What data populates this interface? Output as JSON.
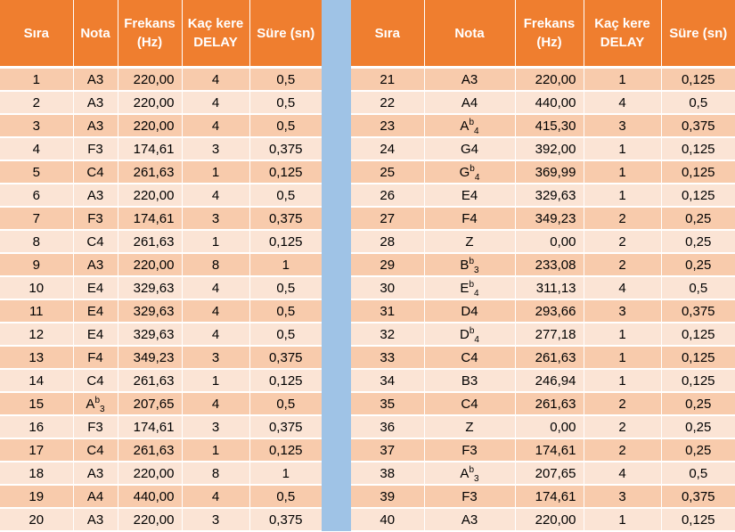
{
  "headers": {
    "sira": "Sıra",
    "nota": "Nota",
    "frekans_1": "Frekans",
    "frekans_2": "(Hz)",
    "kac_kere_1": "Kaç kere",
    "kac_kere_2": "DELAY",
    "sure": "Süre (sn)"
  },
  "left_rows": [
    {
      "sira": "1",
      "nota": "A3",
      "frekans": "220,00",
      "kac_kere": "4",
      "sure": "0,5"
    },
    {
      "sira": "2",
      "nota": "A3",
      "frekans": "220,00",
      "kac_kere": "4",
      "sure": "0,5"
    },
    {
      "sira": "3",
      "nota": "A3",
      "frekans": "220,00",
      "kac_kere": "4",
      "sure": "0,5"
    },
    {
      "sira": "4",
      "nota": "F3",
      "frekans": "174,61",
      "kac_kere": "3",
      "sure": "0,375"
    },
    {
      "sira": "5",
      "nota": "C4",
      "frekans": "261,63",
      "kac_kere": "1",
      "sure": "0,125"
    },
    {
      "sira": "6",
      "nota": "A3",
      "frekans": "220,00",
      "kac_kere": "4",
      "sure": "0,5"
    },
    {
      "sira": "7",
      "nota": "F3",
      "frekans": "174,61",
      "kac_kere": "3",
      "sure": "0,375"
    },
    {
      "sira": "8",
      "nota": "C4",
      "frekans": "261,63",
      "kac_kere": "1",
      "sure": "0,125"
    },
    {
      "sira": "9",
      "nota": "A3",
      "frekans": "220,00",
      "kac_kere": "8",
      "sure": "1"
    },
    {
      "sira": "10",
      "nota": "E4",
      "frekans": "329,63",
      "kac_kere": "4",
      "sure": "0,5"
    },
    {
      "sira": "11",
      "nota": "E4",
      "frekans": "329,63",
      "kac_kere": "4",
      "sure": "0,5"
    },
    {
      "sira": "12",
      "nota": "E4",
      "frekans": "329,63",
      "kac_kere": "4",
      "sure": "0,5"
    },
    {
      "sira": "13",
      "nota": "F4",
      "frekans": "349,23",
      "kac_kere": "3",
      "sure": "0,375"
    },
    {
      "sira": "14",
      "nota": "C4",
      "frekans": "261,63",
      "kac_kere": "1",
      "sure": "0,125"
    },
    {
      "sira": "15",
      "nota": "A",
      "nota_sup": "b",
      "nota_sub": "3",
      "frekans": "207,65",
      "kac_kere": "4",
      "sure": "0,5"
    },
    {
      "sira": "16",
      "nota": "F3",
      "frekans": "174,61",
      "kac_kere": "3",
      "sure": "0,375"
    },
    {
      "sira": "17",
      "nota": "C4",
      "frekans": "261,63",
      "kac_kere": "1",
      "sure": "0,125"
    },
    {
      "sira": "18",
      "nota": "A3",
      "frekans": "220,00",
      "kac_kere": "8",
      "sure": "1"
    },
    {
      "sira": "19",
      "nota": "A4",
      "frekans": "440,00",
      "kac_kere": "4",
      "sure": "0,5"
    },
    {
      "sira": "20",
      "nota": "A3",
      "frekans": "220,00",
      "kac_kere": "3",
      "sure": "0,375"
    }
  ],
  "right_rows": [
    {
      "sira": "21",
      "nota": "A3",
      "frekans": "220,00",
      "kac_kere": "1",
      "sure": "0,125"
    },
    {
      "sira": "22",
      "nota": "A4",
      "frekans": "440,00",
      "kac_kere": "4",
      "sure": "0,5"
    },
    {
      "sira": "23",
      "nota": "A",
      "nota_sup": "b",
      "nota_sub": "4",
      "frekans": "415,30",
      "kac_kere": "3",
      "sure": "0,375"
    },
    {
      "sira": "24",
      "nota": "G4",
      "frekans": "392,00",
      "kac_kere": "1",
      "sure": "0,125"
    },
    {
      "sira": "25",
      "nota": "G",
      "nota_sup": "b",
      "nota_sub": "4",
      "frekans": "369,99",
      "kac_kere": "1",
      "sure": "0,125"
    },
    {
      "sira": "26",
      "nota": "E4",
      "frekans": "329,63",
      "kac_kere": "1",
      "sure": "0,125"
    },
    {
      "sira": "27",
      "nota": "F4",
      "frekans": "349,23",
      "kac_kere": "2",
      "sure": "0,25"
    },
    {
      "sira": "28",
      "nota": "Z",
      "frekans": "0,00",
      "kac_kere": "2",
      "sure": "0,25"
    },
    {
      "sira": "29",
      "nota": "B",
      "nota_sup": "b",
      "nota_sub": "3",
      "frekans": "233,08",
      "kac_kere": "2",
      "sure": "0,25"
    },
    {
      "sira": "30",
      "nota": "E",
      "nota_sup": "b",
      "nota_sub": "4",
      "frekans": "311,13",
      "kac_kere": "4",
      "sure": "0,5"
    },
    {
      "sira": "31",
      "nota": "D4",
      "frekans": "293,66",
      "kac_kere": "3",
      "sure": "0,375"
    },
    {
      "sira": "32",
      "nota": "D",
      "nota_sup": "b",
      "nota_sub": "4",
      "frekans": "277,18",
      "kac_kere": "1",
      "sure": "0,125"
    },
    {
      "sira": "33",
      "nota": "C4",
      "frekans": "261,63",
      "kac_kere": "1",
      "sure": "0,125"
    },
    {
      "sira": "34",
      "nota": "B3",
      "frekans": "246,94",
      "kac_kere": "1",
      "sure": "0,125"
    },
    {
      "sira": "35",
      "nota": "C4",
      "frekans": "261,63",
      "kac_kere": "2",
      "sure": "0,25"
    },
    {
      "sira": "36",
      "nota": "Z",
      "frekans": "0,00",
      "kac_kere": "2",
      "sure": "0,25"
    },
    {
      "sira": "37",
      "nota": "F3",
      "frekans": "174,61",
      "kac_kere": "2",
      "sure": "0,25"
    },
    {
      "sira": "38",
      "nota": "A",
      "nota_sup": "b",
      "nota_sub": "3",
      "frekans": "207,65",
      "kac_kere": "4",
      "sure": "0,5"
    },
    {
      "sira": "39",
      "nota": "F3",
      "frekans": "174,61",
      "kac_kere": "3",
      "sure": "0,375"
    },
    {
      "sira": "40",
      "nota": "A3",
      "frekans": "220,00",
      "kac_kere": "1",
      "sure": "0,125"
    }
  ]
}
